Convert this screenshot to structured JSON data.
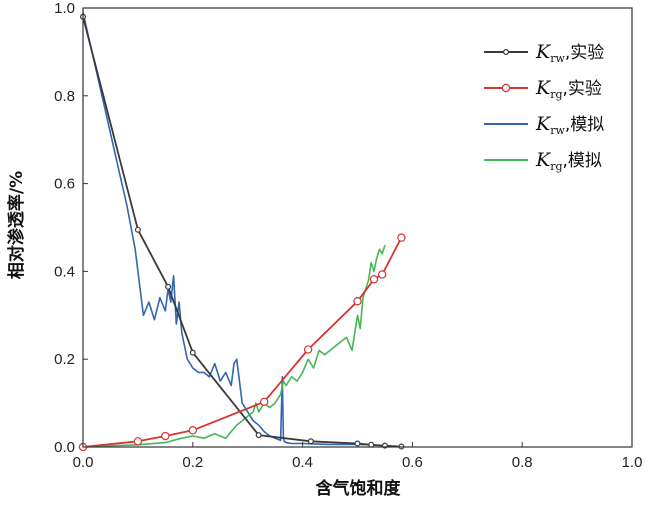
{
  "chart_data": {
    "type": "line",
    "xlabel": "含气饱和度",
    "ylabel": "相对渗透率/%",
    "xlim": [
      0,
      1.0
    ],
    "ylim": [
      0,
      1.0
    ],
    "xticks": [
      "0.0",
      "0.2",
      "0.4",
      "0.6",
      "0.8",
      "1.0"
    ],
    "yticks": [
      "0.0",
      "0.2",
      "0.4",
      "0.6",
      "0.8",
      "1.0"
    ],
    "grid": false,
    "legend_position": "top-right",
    "series": [
      {
        "name": "Krw,实验",
        "symbol": "K",
        "sub": "rw",
        "suffix": ",实验",
        "color": "#3a3a3a",
        "marker": "small-circle",
        "x": [
          0.0,
          0.1,
          0.155,
          0.2,
          0.32,
          0.415,
          0.5,
          0.525,
          0.55,
          0.58
        ],
        "y": [
          0.98,
          0.495,
          0.365,
          0.215,
          0.027,
          0.013,
          0.008,
          0.005,
          0.003,
          0.001
        ]
      },
      {
        "name": "Krg,实验",
        "symbol": "K",
        "sub": "rg",
        "suffix": ",实验",
        "color": "#d7352f",
        "marker": "circle",
        "x": [
          0.0,
          0.1,
          0.15,
          0.2,
          0.33,
          0.41,
          0.5,
          0.53,
          0.545,
          0.58
        ],
        "y": [
          0.0,
          0.013,
          0.025,
          0.038,
          0.103,
          0.222,
          0.332,
          0.382,
          0.393,
          0.477
        ]
      },
      {
        "name": "Krw,模拟",
        "symbol": "K",
        "sub": "rw",
        "suffix": ",模拟",
        "color": "#3366b0",
        "marker": "none",
        "x": [
          0.0,
          0.02,
          0.04,
          0.06,
          0.08,
          0.095,
          0.11,
          0.12,
          0.13,
          0.14,
          0.15,
          0.155,
          0.16,
          0.165,
          0.17,
          0.175,
          0.18,
          0.19,
          0.2,
          0.21,
          0.22,
          0.23,
          0.24,
          0.25,
          0.26,
          0.27,
          0.275,
          0.28,
          0.29,
          0.3,
          0.31,
          0.32,
          0.33,
          0.34,
          0.35,
          0.36,
          0.363,
          0.365,
          0.367,
          0.37,
          0.38,
          0.4,
          0.42,
          0.45,
          0.5,
          0.53
        ],
        "y": [
          0.99,
          0.88,
          0.77,
          0.66,
          0.55,
          0.45,
          0.3,
          0.33,
          0.29,
          0.34,
          0.31,
          0.36,
          0.33,
          0.39,
          0.28,
          0.33,
          0.26,
          0.2,
          0.18,
          0.17,
          0.17,
          0.16,
          0.19,
          0.15,
          0.17,
          0.14,
          0.19,
          0.2,
          0.1,
          0.08,
          0.06,
          0.05,
          0.035,
          0.025,
          0.02,
          0.015,
          0.16,
          0.02,
          0.012,
          0.01,
          0.008,
          0.008,
          0.007,
          0.006,
          0.006,
          0.005
        ]
      },
      {
        "name": "Krg,模拟",
        "symbol": "K",
        "sub": "rg",
        "suffix": ",模拟",
        "color": "#46b758",
        "marker": "none",
        "x": [
          0.0,
          0.05,
          0.1,
          0.15,
          0.18,
          0.2,
          0.22,
          0.24,
          0.26,
          0.27,
          0.28,
          0.29,
          0.3,
          0.31,
          0.315,
          0.32,
          0.33,
          0.34,
          0.35,
          0.36,
          0.365,
          0.37,
          0.38,
          0.39,
          0.4,
          0.41,
          0.42,
          0.43,
          0.44,
          0.45,
          0.46,
          0.47,
          0.48,
          0.49,
          0.5,
          0.505,
          0.51,
          0.515,
          0.52,
          0.525,
          0.53,
          0.535,
          0.54,
          0.545,
          0.55
        ],
        "y": [
          0.0,
          0.003,
          0.005,
          0.01,
          0.02,
          0.025,
          0.02,
          0.03,
          0.02,
          0.035,
          0.05,
          0.06,
          0.07,
          0.08,
          0.1,
          0.08,
          0.1,
          0.09,
          0.1,
          0.12,
          0.15,
          0.14,
          0.16,
          0.15,
          0.17,
          0.2,
          0.18,
          0.22,
          0.21,
          0.22,
          0.23,
          0.24,
          0.25,
          0.22,
          0.3,
          0.27,
          0.34,
          0.36,
          0.38,
          0.42,
          0.4,
          0.43,
          0.45,
          0.44,
          0.46
        ]
      }
    ]
  }
}
